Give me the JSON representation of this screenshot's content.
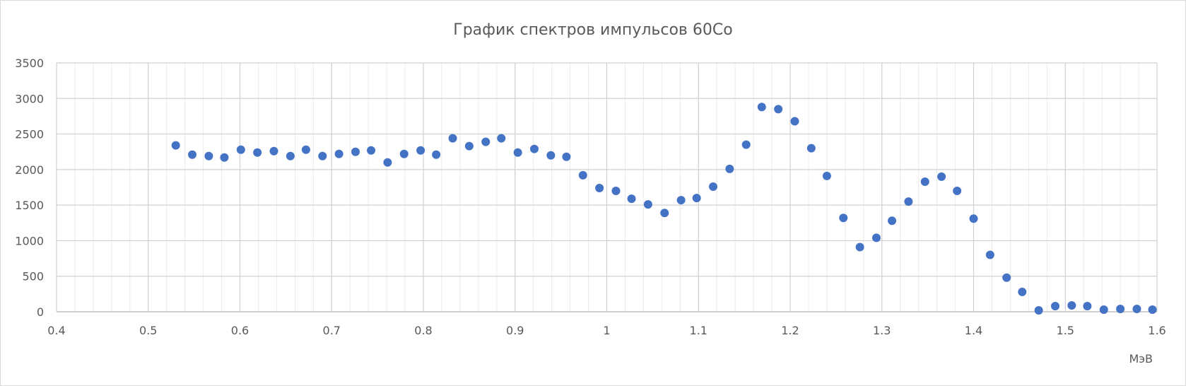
{
  "chart_data": {
    "type": "scatter",
    "title": "График спектров импульсов 60Co",
    "xlabel": "МэВ",
    "ylabel": "",
    "xlim": [
      0.4,
      1.6
    ],
    "ylim": [
      0,
      3500
    ],
    "x_ticks": [
      "0.4",
      "0.5",
      "0.6",
      "0.7",
      "0.8",
      "0.9",
      "1",
      "1.1",
      "1.2",
      "1.3",
      "1.4",
      "1.5",
      "1.6"
    ],
    "y_ticks": [
      "0",
      "500",
      "1000",
      "1500",
      "2000",
      "2500",
      "3000",
      "3500"
    ],
    "x_major_step": 0.1,
    "x_minor_step": 0.02,
    "y_major_step": 500,
    "grid": true,
    "legend": "none",
    "marker_color": "#4472c4",
    "series": [
      {
        "x": [
          0.53,
          0.548,
          0.566,
          0.583,
          0.601,
          0.619,
          0.637,
          0.655,
          0.672,
          0.69,
          0.708,
          0.726,
          0.743,
          0.761,
          0.779,
          0.797,
          0.814,
          0.832,
          0.85,
          0.868,
          0.885,
          0.903,
          0.921,
          0.939,
          0.956,
          0.974,
          0.992,
          1.01,
          1.027,
          1.045,
          1.063,
          1.081,
          1.098,
          1.116,
          1.134,
          1.152,
          1.169,
          1.187,
          1.205,
          1.223,
          1.24,
          1.258,
          1.276,
          1.294,
          1.311,
          1.329,
          1.347,
          1.365,
          1.382,
          1.4,
          1.418,
          1.436,
          1.453,
          1.471,
          1.489,
          1.507,
          1.524,
          1.542,
          1.56,
          1.578,
          1.595
        ],
        "y": [
          2340,
          2210,
          2190,
          2170,
          2280,
          2240,
          2260,
          2190,
          2280,
          2190,
          2220,
          2250,
          2270,
          2100,
          2220,
          2270,
          2210,
          2440,
          2330,
          2390,
          2440,
          2240,
          2290,
          2200,
          2180,
          1920,
          1740,
          1700,
          1590,
          1510,
          1390,
          1570,
          1600,
          1760,
          2010,
          2350,
          2880,
          2850,
          2680,
          2300,
          1910,
          1320,
          910,
          1040,
          1280,
          1550,
          1830,
          1900,
          1700,
          1310,
          800,
          480,
          280,
          20,
          80,
          90,
          80,
          30,
          40,
          40,
          30
        ]
      }
    ]
  }
}
